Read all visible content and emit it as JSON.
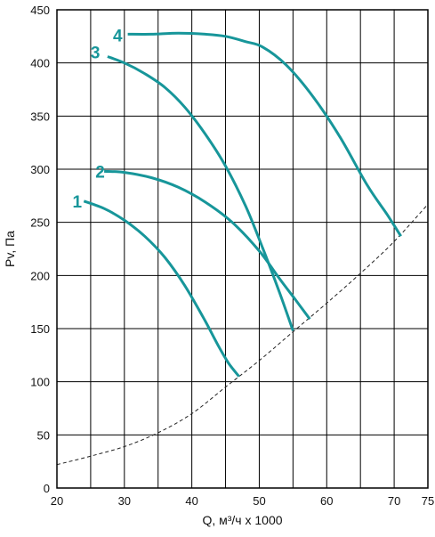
{
  "chart_data": {
    "type": "line",
    "xlabel": "Q, м³/ч x 1000",
    "ylabel": "Pv, Па",
    "xlim": [
      20,
      75
    ],
    "ylim": [
      0,
      450
    ],
    "x_ticks": [
      20,
      30,
      40,
      50,
      60,
      70,
      75
    ],
    "x_tick_labels": [
      "20",
      "30",
      "40",
      "50",
      "60",
      "70",
      "75"
    ],
    "y_ticks": [
      0,
      50,
      100,
      150,
      200,
      250,
      300,
      350,
      400,
      450
    ],
    "y_tick_labels": [
      "0",
      "50",
      "100",
      "150",
      "200",
      "250",
      "300",
      "350",
      "400",
      "450"
    ],
    "grid": true,
    "curve_color": "#17969a",
    "reference_color": "#222222",
    "series": [
      {
        "name": "1",
        "x": [
          24,
          27,
          30,
          33,
          36,
          39,
          42,
          44,
          45.5,
          47
        ],
        "y": [
          270,
          263,
          252,
          237,
          217,
          190,
          157,
          133,
          117,
          105
        ]
      },
      {
        "name": "2",
        "x": [
          27,
          30,
          34,
          38,
          42,
          46,
          50,
          53,
          55.5,
          57.5
        ],
        "y": [
          298,
          297,
          292,
          283,
          269,
          250,
          223,
          197,
          176,
          159
        ]
      },
      {
        "name": "3",
        "x": [
          27.5,
          30,
          33,
          36,
          39,
          42,
          45,
          48,
          50.5,
          53,
          55
        ],
        "y": [
          406,
          400,
          390,
          377,
          358,
          333,
          303,
          265,
          226,
          184,
          148
        ]
      },
      {
        "name": "4",
        "x": [
          30.5,
          34,
          38,
          42,
          45,
          48,
          50.5,
          54,
          58,
          62,
          66,
          69,
          71
        ],
        "y": [
          427,
          427,
          428,
          427,
          425,
          420,
          415,
          398,
          368,
          330,
          285,
          257,
          237
        ]
      },
      {
        "x": [
          20,
          25,
          30,
          35,
          40,
          45,
          50,
          55,
          60,
          65,
          70,
          75
        ],
        "y": [
          22,
          30,
          39,
          52,
          70,
          95,
          120,
          147,
          174,
          202,
          232,
          267
        ]
      }
    ],
    "label_points": [
      {
        "text": "1",
        "x": 23.0,
        "y": 270
      },
      {
        "text": "2",
        "x": 26.4,
        "y": 298
      },
      {
        "text": "3",
        "x": 25.7,
        "y": 410
      },
      {
        "text": "4",
        "x": 29.0,
        "y": 426
      }
    ]
  }
}
